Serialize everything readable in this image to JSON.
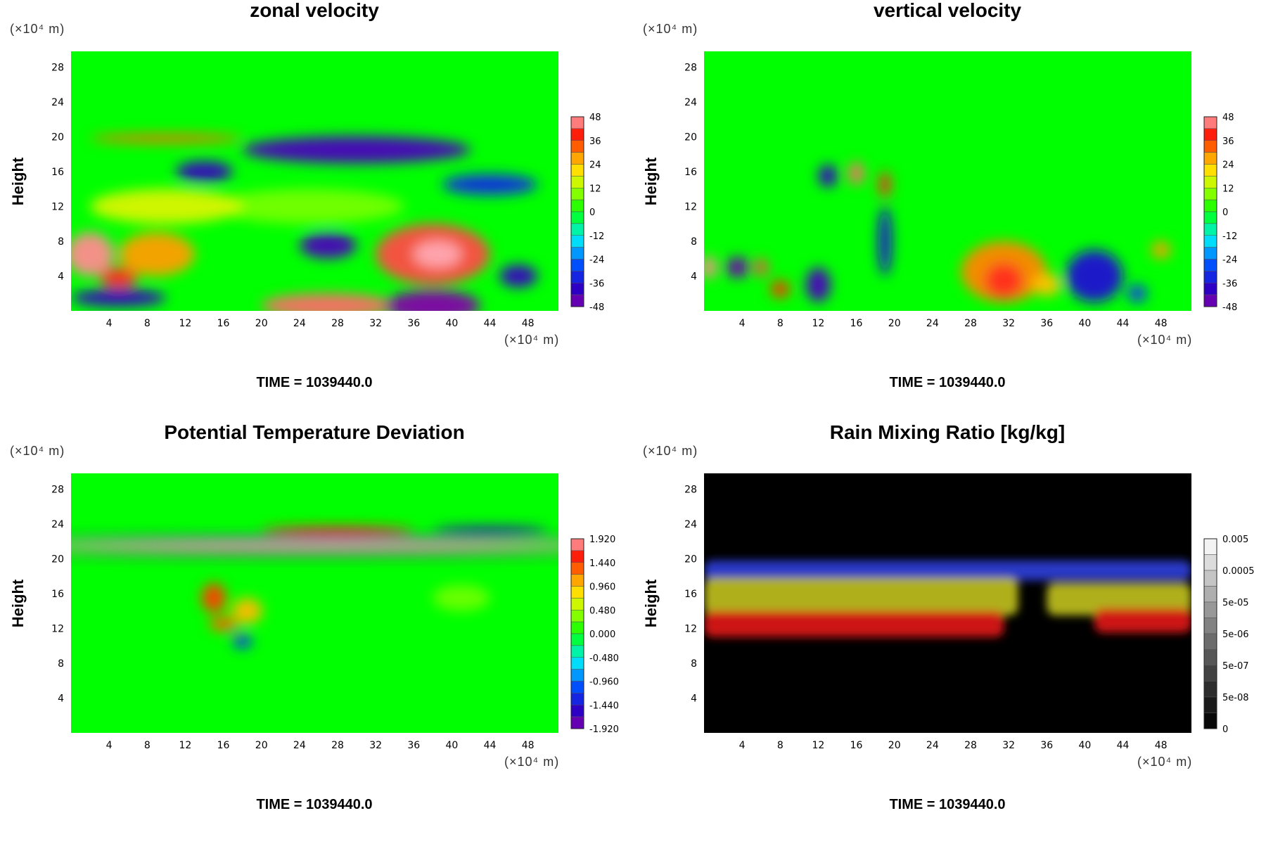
{
  "chart_data": [
    {
      "type": "heatmap",
      "title": "zonal velocity",
      "ylabel": "Height",
      "y_unit_label": "(×10⁴ m)",
      "x_unit_label": "(×10⁴ m)",
      "time_label": "TIME = 1039440.0",
      "x_ticks": [
        4,
        8,
        12,
        16,
        20,
        24,
        28,
        32,
        36,
        40,
        44,
        48
      ],
      "y_ticks": [
        4,
        8,
        12,
        16,
        20,
        24,
        28
      ],
      "xlim": [
        0,
        51.2
      ],
      "ylim": [
        0,
        29.8
      ],
      "colorbar": {
        "labels": [
          "48",
          "36",
          "24",
          "12",
          "0",
          "-12",
          "-24",
          "-36",
          "-48"
        ],
        "palette": "rainbow"
      },
      "features": [
        {
          "x": 38,
          "y": 6.5,
          "rx": 6,
          "ry": 3.5,
          "value": 42
        },
        {
          "x": 38.5,
          "y": 6.5,
          "rx": 2.5,
          "ry": 1.5,
          "value": 50
        },
        {
          "x": 2,
          "y": 6.5,
          "rx": 2.5,
          "ry": 2.5,
          "value": 46
        },
        {
          "x": 9,
          "y": 6.5,
          "rx": 4,
          "ry": 2.5,
          "value": 28
        },
        {
          "x": 5,
          "y": 3.8,
          "rx": 2,
          "ry": 1.2,
          "value": 40
        },
        {
          "x": 27,
          "y": 0.6,
          "rx": 7,
          "ry": 1.4,
          "value": 44
        },
        {
          "x": 38,
          "y": 0.6,
          "rx": 5,
          "ry": 1.8,
          "value": -55
        },
        {
          "x": 5,
          "y": 1.5,
          "rx": 5,
          "ry": 1,
          "value": -40
        },
        {
          "x": 27,
          "y": 7.5,
          "rx": 3,
          "ry": 1.5,
          "value": -42
        },
        {
          "x": 30,
          "y": 18.5,
          "rx": 12,
          "ry": 1.6,
          "value": -42
        },
        {
          "x": 14,
          "y": 16,
          "rx": 3,
          "ry": 1.2,
          "value": -40
        },
        {
          "x": 44,
          "y": 14.5,
          "rx": 5,
          "ry": 1.2,
          "value": -32
        },
        {
          "x": 47,
          "y": 4,
          "rx": 2,
          "ry": 1.3,
          "value": -40
        },
        {
          "x": 10,
          "y": 19.8,
          "rx": 8,
          "ry": 0.5,
          "value": 32
        },
        {
          "x": 25,
          "y": 12,
          "rx": 10,
          "ry": 2,
          "value": 8
        },
        {
          "x": 10,
          "y": 12,
          "rx": 8,
          "ry": 2,
          "value": 16
        }
      ]
    },
    {
      "type": "heatmap",
      "title": "vertical velocity",
      "ylabel": "Height",
      "y_unit_label": "(×10⁴ m)",
      "x_unit_label": "(×10⁴ m)",
      "time_label": "TIME = 1039440.0",
      "x_ticks": [
        4,
        8,
        12,
        16,
        20,
        24,
        28,
        32,
        36,
        40,
        44,
        48
      ],
      "y_ticks": [
        4,
        8,
        12,
        16,
        20,
        24,
        28
      ],
      "xlim": [
        0,
        51.2
      ],
      "ylim": [
        0,
        29.8
      ],
      "colorbar": {
        "labels": [
          "48",
          "36",
          "24",
          "12",
          "0",
          "-12",
          "-24",
          "-36",
          "-48"
        ],
        "palette": "rainbow"
      },
      "features": [
        {
          "x": 31.5,
          "y": 4.5,
          "rx": 4.5,
          "ry": 3.5,
          "value": 30
        },
        {
          "x": 31.5,
          "y": 3.5,
          "rx": 2,
          "ry": 2,
          "value": 40
        },
        {
          "x": 41,
          "y": 4,
          "rx": 3,
          "ry": 3,
          "value": -36
        },
        {
          "x": 12,
          "y": 3,
          "rx": 1.3,
          "ry": 2,
          "value": -42
        },
        {
          "x": 16,
          "y": 15.8,
          "rx": 0.8,
          "ry": 1.3,
          "value": 44
        },
        {
          "x": 19,
          "y": 14.5,
          "rx": 0.6,
          "ry": 1.5,
          "value": 40
        },
        {
          "x": 3.5,
          "y": 5,
          "rx": 1.2,
          "ry": 1.2,
          "value": -46
        },
        {
          "x": 6,
          "y": 5,
          "rx": 0.7,
          "ry": 1,
          "value": 42
        },
        {
          "x": 0.5,
          "y": 5,
          "rx": 0.8,
          "ry": 1.3,
          "value": 46
        },
        {
          "x": 19,
          "y": 8,
          "rx": 0.7,
          "ry": 4,
          "value": -36
        },
        {
          "x": 13,
          "y": 15.5,
          "rx": 1,
          "ry": 1.3,
          "value": -40
        },
        {
          "x": 8,
          "y": 2.5,
          "rx": 1,
          "ry": 1,
          "value": 36
        },
        {
          "x": 36,
          "y": 3,
          "rx": 1.5,
          "ry": 1.3,
          "value": 24
        },
        {
          "x": 48,
          "y": 7,
          "rx": 1,
          "ry": 1,
          "value": 28
        },
        {
          "x": 45.5,
          "y": 2,
          "rx": 1,
          "ry": 1,
          "value": -30
        }
      ]
    },
    {
      "type": "heatmap",
      "title": "Potential Temperature Deviation",
      "ylabel": "Height",
      "y_unit_label": "(×10⁴ m)",
      "x_unit_label": "(×10⁴ m)",
      "time_label": "TIME = 1039440.0",
      "x_ticks": [
        4,
        8,
        12,
        16,
        20,
        24,
        28,
        32,
        36,
        40,
        44,
        48
      ],
      "y_ticks": [
        4,
        8,
        12,
        16,
        20,
        24,
        28
      ],
      "xlim": [
        0,
        51.2
      ],
      "ylim": [
        0,
        29.8
      ],
      "colorbar": {
        "labels": [
          "1.920",
          "1.440",
          "0.960",
          "0.480",
          "0.000",
          "-0.480",
          "-0.960",
          "-1.440",
          "-1.920"
        ],
        "palette": "rainbow"
      },
      "features": [
        {
          "x": 25.6,
          "y": 21.5,
          "rx": 30,
          "ry": 0.4,
          "value": 2.1
        },
        {
          "x": 25.6,
          "y": 20.6,
          "rx": 30,
          "ry": 0.3,
          "value": -2.0
        },
        {
          "x": 25.6,
          "y": 22.3,
          "rx": 30,
          "ry": 0.3,
          "value": -1.7
        },
        {
          "x": 28,
          "y": 23.2,
          "rx": 8,
          "ry": 0.5,
          "value": 1.5
        },
        {
          "x": 44,
          "y": 23.3,
          "rx": 6,
          "ry": 0.4,
          "value": -1.6
        },
        {
          "x": 15,
          "y": 15.5,
          "rx": 1.3,
          "ry": 1.7,
          "value": 1.4
        },
        {
          "x": 18.5,
          "y": 14,
          "rx": 1.6,
          "ry": 1.5,
          "value": 1.0
        },
        {
          "x": 16,
          "y": 12.5,
          "rx": 1.5,
          "ry": 0.8,
          "value": 1.3
        },
        {
          "x": 18,
          "y": 10.5,
          "rx": 1,
          "ry": 0.8,
          "value": -1.2
        },
        {
          "x": 41,
          "y": 15.5,
          "rx": 3,
          "ry": 1.5,
          "value": 0.3
        }
      ]
    },
    {
      "type": "heatmap",
      "title": "Rain Mixing Ratio [kg/kg]",
      "ylabel": "Height",
      "y_unit_label": "(×10⁴ m)",
      "x_unit_label": "(×10⁴ m)",
      "time_label": "TIME = 1039440.0",
      "x_ticks": [
        4,
        8,
        12,
        16,
        20,
        24,
        28,
        32,
        36,
        40,
        44,
        48
      ],
      "y_ticks": [
        4,
        8,
        12,
        16,
        20,
        24,
        28
      ],
      "xlim": [
        0,
        51.2
      ],
      "ylim": [
        0,
        29.8
      ],
      "colorbar": {
        "labels": [
          "0.005",
          "0.0005",
          "5e-05",
          "5e-06",
          "5e-07",
          "5e-08",
          "0"
        ],
        "palette": "grayscale"
      },
      "layers": [
        {
          "name": "blue",
          "color": "#2a3cd0",
          "x0": 0,
          "x1": 51.2,
          "y0": 17.5,
          "y1": 19.8
        },
        {
          "name": "yellow",
          "color": "#b8b820",
          "x0": 0,
          "x1": 33,
          "y0": 13.5,
          "y1": 17.8
        },
        {
          "name": "yellow2",
          "color": "#b8b820",
          "x0": 36,
          "x1": 51.2,
          "y0": 13.5,
          "y1": 17.2
        },
        {
          "name": "red",
          "color": "#d81818",
          "x0": 0,
          "x1": 31.5,
          "y0": 11,
          "y1": 14
        },
        {
          "name": "red2",
          "color": "#d81818",
          "x0": 41,
          "x1": 51.2,
          "y0": 11.5,
          "y1": 14.3
        }
      ]
    }
  ]
}
